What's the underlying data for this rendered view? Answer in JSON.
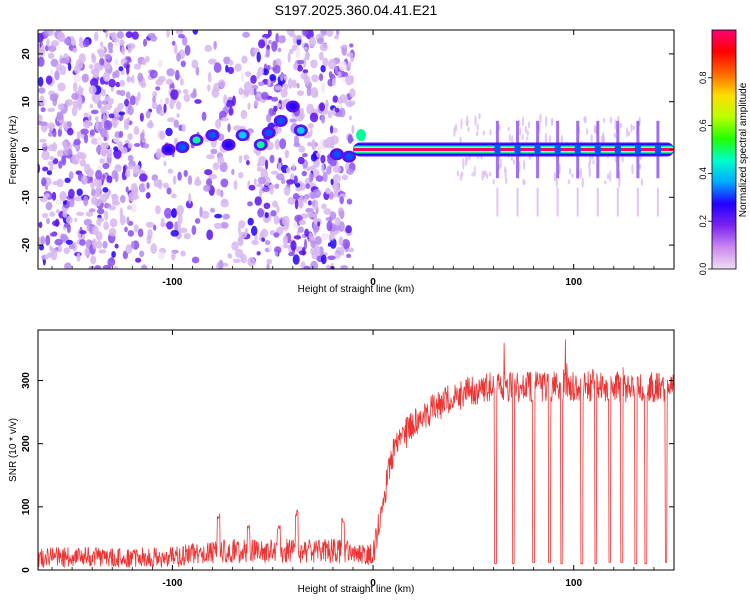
{
  "title": "S197.2025.360.04.41.E21",
  "colors": {
    "trace": "#ee3333",
    "axis": "#000000",
    "colormap": [
      "#f2e6f6",
      "#d7b6f0",
      "#b58cf0",
      "#8a4ef0",
      "#5a10f0",
      "#2200ff",
      "#0055ff",
      "#00ccff",
      "#00ff99",
      "#33ff00",
      "#aaff00",
      "#ffee00",
      "#ff8800",
      "#ff2200",
      "#ff0066"
    ]
  },
  "chart_data": [
    {
      "type": "heatmap",
      "title": "",
      "xlabel": "Height of straight line (km)",
      "ylabel": "Frequency (Hz)",
      "xlim": [
        -167,
        150
      ],
      "ylim": [
        -25,
        25
      ],
      "xticks": [
        -100,
        0,
        100
      ],
      "xtick_labels": [
        "-100",
        "0",
        "100"
      ],
      "yticks": [
        -20,
        -10,
        0,
        10,
        20
      ],
      "ytick_labels": [
        "-20",
        "-10",
        "0",
        "10",
        "20"
      ],
      "colorbar": {
        "label": "Normalized spectral amplitude",
        "range": [
          0,
          1
        ],
        "ticks": [
          0.0,
          0.2,
          0.4,
          0.6,
          0.8
        ],
        "tick_labels": [
          "0.0",
          "0.2",
          "0.4",
          "0.6",
          "0.8"
        ]
      },
      "features": {
        "noise_region_km": [
          -167,
          -10
        ],
        "sparse_noise_band_km": [
          -120,
          -60
        ],
        "carrier_trace": [
          {
            "x": -102,
            "y": 0,
            "v": 0.35
          },
          {
            "x": -95,
            "y": 0.5,
            "v": 0.45
          },
          {
            "x": -88,
            "y": 2,
            "v": 0.55
          },
          {
            "x": -80,
            "y": 3,
            "v": 0.4
          },
          {
            "x": -72,
            "y": 1,
            "v": 0.35
          },
          {
            "x": -65,
            "y": 3,
            "v": 0.5
          },
          {
            "x": -56,
            "y": 1,
            "v": 0.55
          },
          {
            "x": -52,
            "y": 3.5,
            "v": 0.45
          },
          {
            "x": -46,
            "y": 6,
            "v": 0.4
          },
          {
            "x": -40,
            "y": 9,
            "v": 0.35
          },
          {
            "x": -36,
            "y": 4,
            "v": 0.5
          },
          {
            "x": -18,
            "y": -1,
            "v": 0.45
          },
          {
            "x": -12,
            "y": -1.5,
            "v": 0.4
          },
          {
            "x": -5,
            "y": 0,
            "v": 0.3
          }
        ],
        "steady_tone": {
          "start_km": -10,
          "end_km": 150,
          "freq_hz": 0,
          "bump": {
            "x": -6,
            "y": 3
          }
        },
        "interruptions_km": [
          62,
          72,
          82,
          92,
          102,
          112,
          122,
          132,
          142
        ]
      }
    },
    {
      "type": "line",
      "title": "",
      "xlabel": "Height of straight line (km)",
      "ylabel": "SNR (10 * v/v)",
      "xlim": [
        -167,
        150
      ],
      "ylim": [
        0,
        380
      ],
      "xticks": [
        -100,
        0,
        100
      ],
      "xtick_labels": [
        "-100",
        "0",
        "100"
      ],
      "yticks": [
        0,
        100,
        200,
        300
      ],
      "ytick_labels": [
        "0",
        "100",
        "200",
        "300"
      ],
      "series": [
        {
          "name": "SNR",
          "profile": [
            {
              "x": -167,
              "y": 20
            },
            {
              "x": -100,
              "y": 20
            },
            {
              "x": -80,
              "y": 30
            },
            {
              "x": -20,
              "y": 30
            },
            {
              "x": 0,
              "y": 25
            },
            {
              "x": 5,
              "y": 110
            },
            {
              "x": 10,
              "y": 190
            },
            {
              "x": 20,
              "y": 230
            },
            {
              "x": 30,
              "y": 255
            },
            {
              "x": 40,
              "y": 275
            },
            {
              "x": 50,
              "y": 285
            },
            {
              "x": 60,
              "y": 290
            },
            {
              "x": 150,
              "y": 290
            }
          ],
          "dropouts": [
            {
              "x": 61,
              "y": 10
            },
            {
              "x": 70,
              "y": 10
            },
            {
              "x": 80,
              "y": 12
            },
            {
              "x": 88,
              "y": 12
            },
            {
              "x": 94,
              "y": 10
            },
            {
              "x": 104,
              "y": 10
            },
            {
              "x": 111,
              "y": 10
            },
            {
              "x": 118,
              "y": 12
            },
            {
              "x": 124,
              "y": 12
            },
            {
              "x": 131,
              "y": 10
            },
            {
              "x": 136,
              "y": 10
            },
            {
              "x": 146,
              "y": 12
            }
          ],
          "bursts": [
            {
              "x": -77,
              "y": 90
            },
            {
              "x": -62,
              "y": 72
            },
            {
              "x": -47,
              "y": 72
            },
            {
              "x": -38,
              "y": 95
            },
            {
              "x": -15,
              "y": 85
            }
          ]
        }
      ]
    }
  ]
}
